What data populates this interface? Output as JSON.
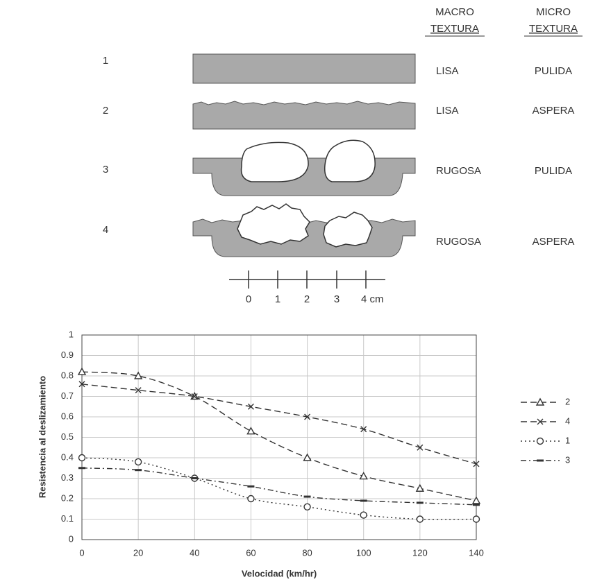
{
  "diagram": {
    "headers": [
      [
        "MACRO",
        "TEXTURA"
      ],
      [
        "MICRO",
        "TEXTURA"
      ]
    ],
    "rows": [
      {
        "number": "1",
        "macro": "LISA",
        "micro": "PULIDA"
      },
      {
        "number": "2",
        "macro": "LISA",
        "micro": "ASPERA"
      },
      {
        "number": "3",
        "macro": "RUGOSA",
        "micro": "PULIDA"
      },
      {
        "number": "4",
        "macro": "RUGOSA",
        "micro": "ASPERA"
      }
    ],
    "scale": [
      "0",
      "1",
      "2",
      "3",
      "4 cm"
    ]
  },
  "chart_data": {
    "type": "line",
    "xlabel": "Velocidad (km/hr)",
    "ylabel": "Resistencia al deslizamiento",
    "x": [
      0,
      20,
      40,
      60,
      80,
      100,
      120,
      140
    ],
    "xlim": [
      0,
      140
    ],
    "xticks": [
      0,
      20,
      40,
      60,
      80,
      100,
      120,
      140
    ],
    "ylim": [
      0,
      1
    ],
    "yticks": [
      0,
      0.1,
      0.2,
      0.3,
      0.4,
      0.5,
      0.6,
      0.7,
      0.8,
      0.9,
      1
    ],
    "grid": true,
    "legend": "right",
    "series": [
      {
        "name": "2",
        "color": "#333333",
        "marker": "triangle",
        "dash": "9,5",
        "values": [
          0.82,
          0.8,
          0.7,
          0.53,
          0.4,
          0.31,
          0.25,
          0.19
        ]
      },
      {
        "name": "4",
        "color": "#333333",
        "marker": "x",
        "dash": "9,5",
        "values": [
          0.76,
          0.73,
          0.7,
          0.65,
          0.6,
          0.54,
          0.45,
          0.37
        ]
      },
      {
        "name": "1",
        "color": "#333333",
        "marker": "circle",
        "dash": "2,4",
        "values": [
          0.4,
          0.38,
          0.3,
          0.2,
          0.16,
          0.12,
          0.1,
          0.1
        ]
      },
      {
        "name": "3",
        "color": "#333333",
        "marker": "dash",
        "dash": "8,4,2,4",
        "values": [
          0.35,
          0.34,
          0.3,
          0.26,
          0.21,
          0.19,
          0.18,
          0.17
        ]
      }
    ]
  }
}
